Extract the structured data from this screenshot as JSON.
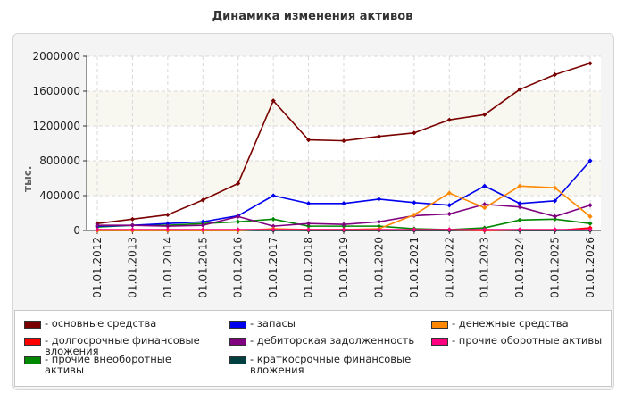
{
  "title": "Динамика изменения активов",
  "chart_data": {
    "type": "line",
    "title": "Динамика изменения активов",
    "ylabel": "тыс.",
    "xlabel": "",
    "ylim": [
      0,
      2000000
    ],
    "yticks": [
      "0",
      "400000",
      "800000",
      "1200000",
      "1600000",
      "2000000"
    ],
    "ytick_values": [
      0,
      400000,
      800000,
      1200000,
      1600000,
      2000000
    ],
    "categories": [
      "01.01.2012",
      "01.01.2013",
      "01.01.2014",
      "01.01.2015",
      "01.01.2016",
      "01.01.2017",
      "01.01.2018",
      "01.01.2019",
      "01.01.2020",
      "01.01.2021",
      "01.01.2022",
      "01.01.2023",
      "01.01.2024",
      "01.01.2025",
      "01.01.2026"
    ],
    "grid": true,
    "legend_position": "bottom",
    "series": [
      {
        "name": "- основные средства",
        "color": "#7a0000",
        "values": [
          80000,
          130000,
          180000,
          350000,
          540000,
          1490000,
          1040000,
          1030000,
          1080000,
          1120000,
          1270000,
          1330000,
          1620000,
          1790000,
          1920000
        ]
      },
      {
        "name": "- долгосрочные финансовые вложения",
        "color": "#ff0000",
        "values": [
          0,
          0,
          0,
          0,
          0,
          10000,
          0,
          0,
          0,
          0,
          0,
          0,
          0,
          0,
          30000
        ]
      },
      {
        "name": "- прочие внеоборотные активы",
        "color": "#008800",
        "values": [
          40000,
          60000,
          60000,
          80000,
          100000,
          130000,
          50000,
          50000,
          50000,
          20000,
          10000,
          30000,
          120000,
          130000,
          80000
        ]
      },
      {
        "name": "- запасы",
        "color": "#0000ee",
        "values": [
          50000,
          60000,
          80000,
          100000,
          170000,
          400000,
          310000,
          310000,
          360000,
          320000,
          290000,
          510000,
          310000,
          340000,
          800000
        ]
      },
      {
        "name": "- дебиторская задолженность",
        "color": "#800080",
        "values": [
          60000,
          60000,
          50000,
          60000,
          160000,
          50000,
          80000,
          70000,
          100000,
          170000,
          190000,
          300000,
          270000,
          160000,
          290000
        ]
      },
      {
        "name": "- краткосрочные финансовые вложения",
        "color": "#003f3f",
        "values": [
          0,
          0,
          0,
          0,
          0,
          0,
          0,
          0,
          0,
          0,
          0,
          10000,
          0,
          0,
          0
        ]
      },
      {
        "name": "- денежные средства",
        "color": "#ff8800",
        "values": [
          0,
          0,
          0,
          0,
          0,
          20000,
          10000,
          10000,
          20000,
          180000,
          430000,
          260000,
          510000,
          490000,
          160000
        ]
      },
      {
        "name": "- прочие оборотные активы",
        "color": "#ff0080",
        "values": [
          10000,
          10000,
          10000,
          10000,
          10000,
          10000,
          10000,
          10000,
          10000,
          10000,
          10000,
          10000,
          10000,
          10000,
          10000
        ]
      }
    ]
  }
}
